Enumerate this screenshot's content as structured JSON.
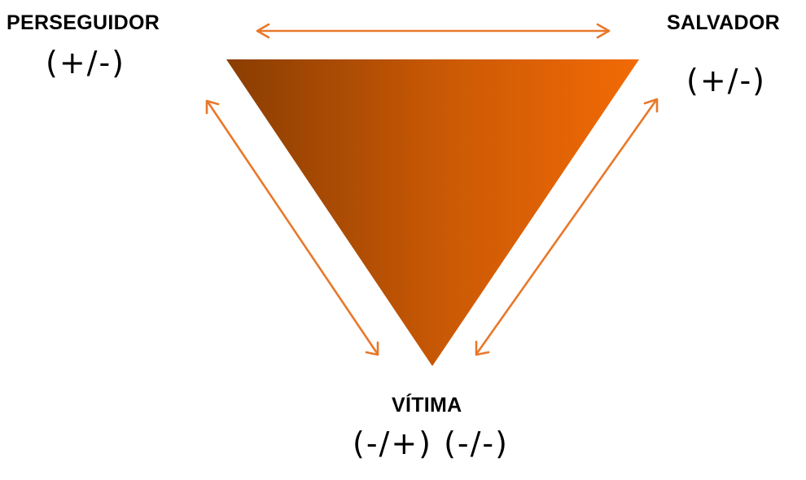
{
  "roles": {
    "perseguidor": {
      "name": "PERSEGUIDOR",
      "sign": "(+/-)"
    },
    "salvador": {
      "name": "SALVADOR",
      "sign": "(+/-)"
    },
    "vitima": {
      "name": "VÍTIMA",
      "sign": "(-/+) (-/-)"
    }
  },
  "colors": {
    "arrow": "#E8782A",
    "triangle_dark": "#8A3D02",
    "triangle_mid": "#CC5A05",
    "triangle_light": "#F26A05",
    "text": "#000000"
  },
  "icons": {
    "arrows": "double-headed-arrow",
    "shape": "inverted-triangle"
  }
}
